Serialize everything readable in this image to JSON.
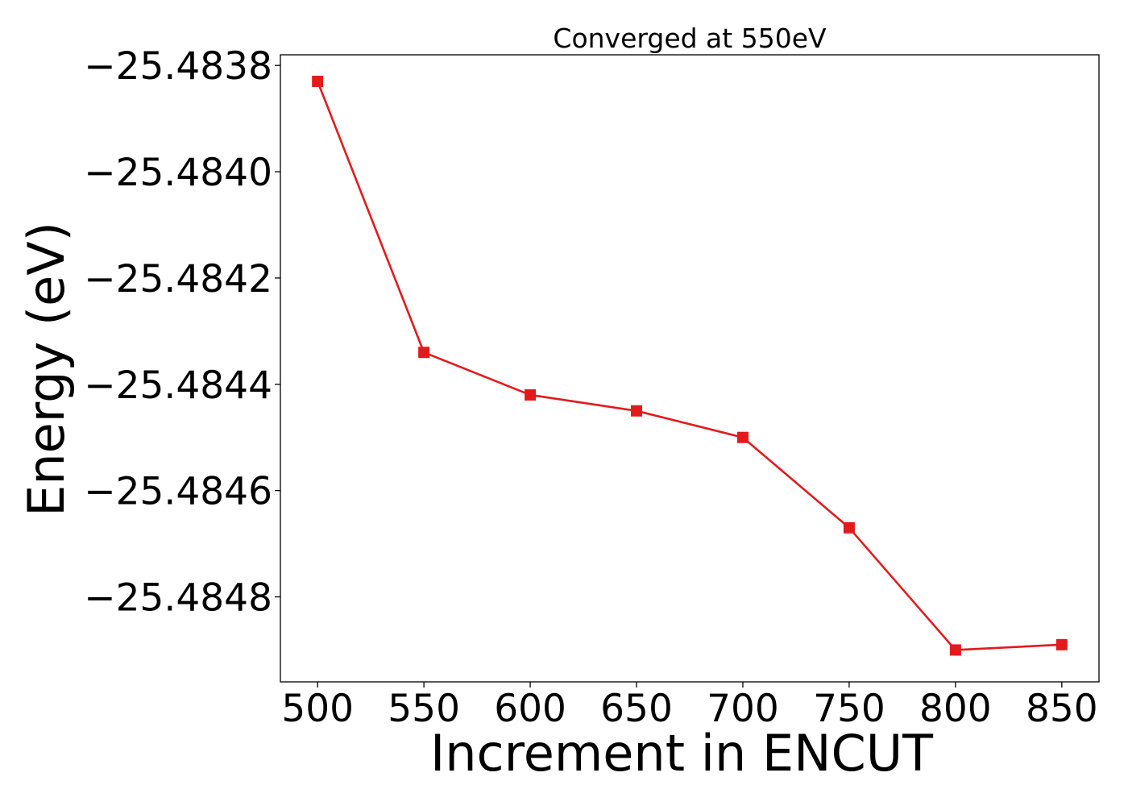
{
  "chart_data": {
    "type": "line",
    "title": "Converged at 550eV",
    "xlabel": "Increment in ENCUT",
    "ylabel": "Energy (eV)",
    "x": [
      500,
      550,
      600,
      650,
      700,
      750,
      800,
      850
    ],
    "series": [
      {
        "values": [
          -25.48383,
          -25.48434,
          -25.48442,
          -25.48445,
          -25.4845,
          -25.48467,
          -25.4849,
          -25.48489
        ],
        "color": "#e31a1c",
        "marker": "square"
      }
    ],
    "xlim": [
      482.5,
      867.5
    ],
    "ylim": [
      -25.48496,
      -25.48378
    ],
    "xticks": [
      500,
      550,
      600,
      650,
      700,
      750,
      800,
      850
    ],
    "xtick_labels": [
      "500",
      "550",
      "600",
      "650",
      "700",
      "750",
      "800",
      "850"
    ],
    "yticks": [
      -25.4838,
      -25.484,
      -25.4842,
      -25.4844,
      -25.4846,
      -25.4848
    ],
    "ytick_labels": [
      "−25.4838",
      "−25.4840",
      "−25.4842",
      "−25.4844",
      "−25.4846",
      "−25.4848"
    ],
    "grid": false,
    "legend": "none"
  }
}
